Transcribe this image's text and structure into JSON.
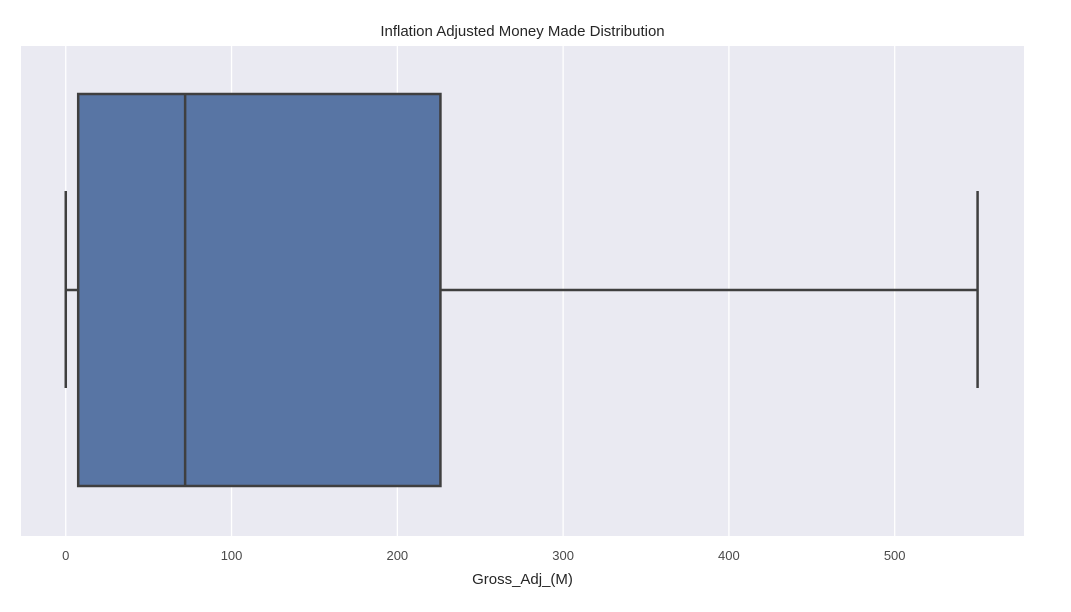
{
  "chart_data": {
    "type": "box",
    "title": "Inflation Adjusted Money Made Distribution",
    "xlabel": "Gross_Adj_(M)",
    "ylabel": "",
    "orientation": "horizontal",
    "xlim": [
      -27,
      578
    ],
    "xticks": [
      0,
      100,
      200,
      300,
      400,
      500
    ],
    "xtick_labels": [
      "0",
      "100",
      "200",
      "300",
      "400",
      "500"
    ],
    "grid": true,
    "box": {
      "whisker_low": 0,
      "q1": 7.5,
      "median": 72,
      "q3": 226,
      "whisker_high": 550
    },
    "colors": {
      "background": "#EAEAF2",
      "grid": "#FFFFFF",
      "box_fill": "#5875A4",
      "lines": "#3F3F3F"
    }
  }
}
